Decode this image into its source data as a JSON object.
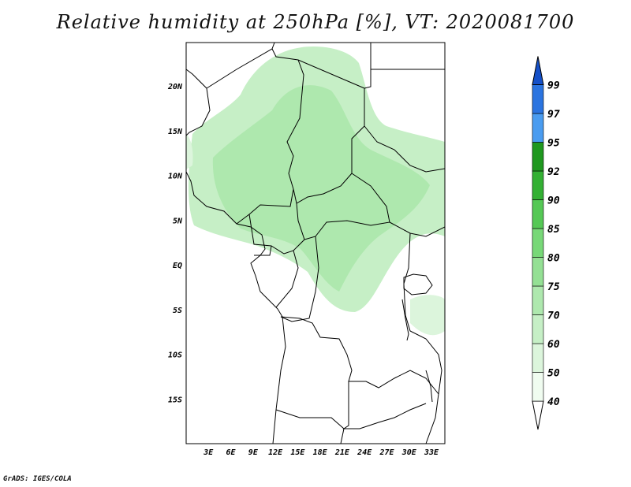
{
  "title": "Relative humidity at 250hPa [%], VT: 2020081700",
  "credit": "GrADS: IGES/COLA",
  "map": {
    "lat_labels": [
      {
        "label": "20N",
        "lat": 20
      },
      {
        "label": "15N",
        "lat": 15
      },
      {
        "label": "10N",
        "lat": 10
      },
      {
        "label": "5N",
        "lat": 5
      },
      {
        "label": "EQ",
        "lat": 0
      },
      {
        "label": "5S",
        "lat": -5
      },
      {
        "label": "10S",
        "lat": -10
      },
      {
        "label": "15S",
        "lat": -15
      }
    ],
    "lon_labels": [
      {
        "label": "3E",
        "lon": 3
      },
      {
        "label": "6E",
        "lon": 6
      },
      {
        "label": "9E",
        "lon": 9
      },
      {
        "label": "12E",
        "lon": 12
      },
      {
        "label": "15E",
        "lon": 15
      },
      {
        "label": "18E",
        "lon": 18
      },
      {
        "label": "21E",
        "lon": 21
      },
      {
        "label": "24E",
        "lon": 24
      },
      {
        "label": "27E",
        "lon": 27
      },
      {
        "label": "30E",
        "lon": 30
      },
      {
        "label": "33E",
        "lon": 33
      }
    ]
  },
  "colorbar": {
    "levels": [
      "40",
      "50",
      "60",
      "70",
      "75",
      "80",
      "85",
      "90",
      "92",
      "95",
      "97",
      "99"
    ],
    "colors": [
      "#f0fcf0",
      "#dcf5dc",
      "#c6efc6",
      "#aee8ae",
      "#94e094",
      "#78d878",
      "#55c855",
      "#33b033",
      "#1f981f",
      "#4a9cf0",
      "#2b74e0",
      "#1550c8"
    ]
  }
}
